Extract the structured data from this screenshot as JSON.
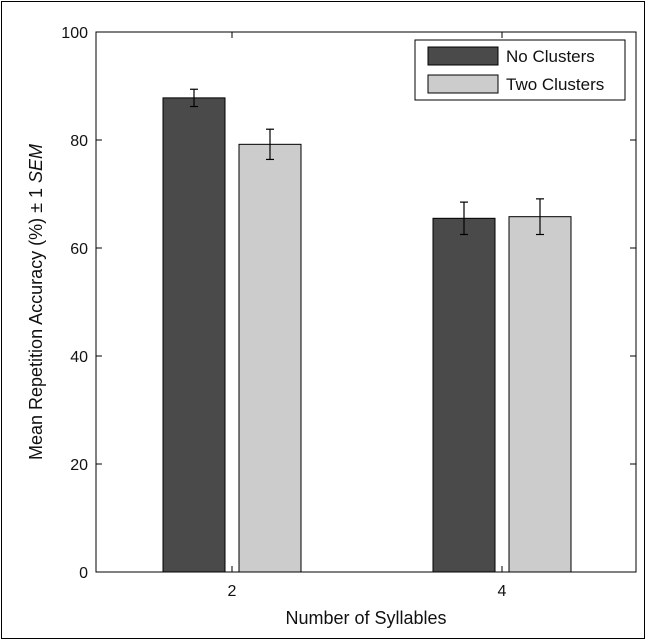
{
  "chart_data": {
    "type": "bar",
    "title": "",
    "xlabel": "Number of Syllables",
    "ylabel_main": "Mean Repetition Accuracy (%) ± 1 ",
    "ylabel_italic": "SEM",
    "categories": [
      "2",
      "4"
    ],
    "series": [
      {
        "name": "No Clusters",
        "values": [
          87.8,
          65.5
        ],
        "errors": [
          1.6,
          3.0
        ],
        "color": "#4a4a4a"
      },
      {
        "name": "Two Clusters",
        "values": [
          79.2,
          65.8
        ],
        "errors": [
          2.8,
          3.3
        ],
        "color": "#cccccc"
      }
    ],
    "ylim": [
      0,
      100
    ],
    "yticks": [
      0,
      20,
      40,
      60,
      80,
      100
    ],
    "legend_position": "top-right",
    "grid": false
  }
}
